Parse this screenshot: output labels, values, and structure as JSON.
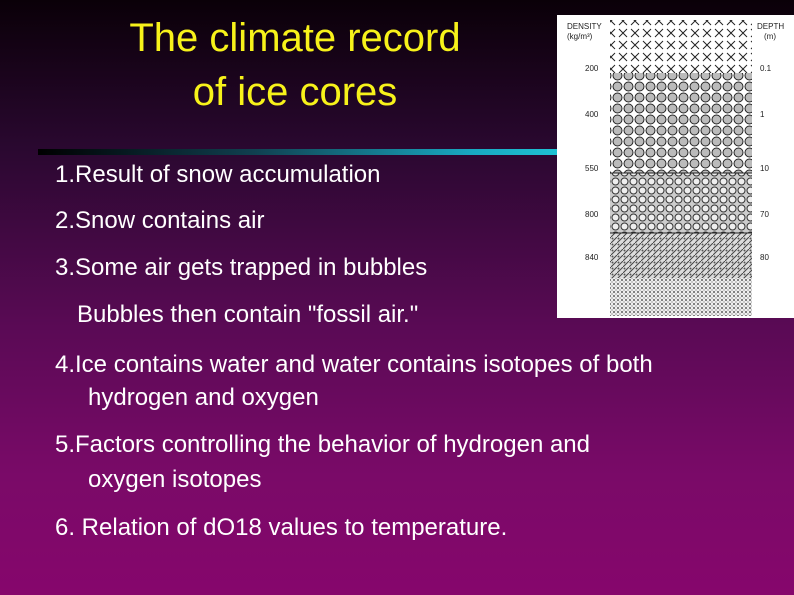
{
  "slide": {
    "title": [
      "The climate record",
      "of ice cores"
    ],
    "figure": {
      "density_header": [
        "DENSITY",
        "(kg/m³)"
      ],
      "depth_header": [
        "DEPTH",
        "(m)"
      ],
      "density_labels": [
        "200",
        "400",
        "550",
        "800",
        "840"
      ],
      "depth_labels": [
        "0.1",
        "1",
        "10",
        "70",
        "80"
      ]
    },
    "items": [
      {
        "lines": [
          "1.Result of snow accumulation"
        ]
      },
      {
        "lines": [
          "2.Snow contains air"
        ]
      },
      {
        "lines": [
          "3.Some air gets trapped in bubbles"
        ]
      },
      {
        "lines": [
          "Bubbles then contain \"fossil air.\""
        ]
      },
      {
        "lines": [
          "4.Ice contains water and water contains isotopes of both",
          "hydrogen and oxygen"
        ]
      },
      {
        "lines": [
          "5.Factors controlling the behavior of hydrogen and",
          "oxygen isotopes"
        ]
      },
      {
        "lines": [
          "6. Relation of dO18 values to temperature."
        ]
      }
    ]
  }
}
